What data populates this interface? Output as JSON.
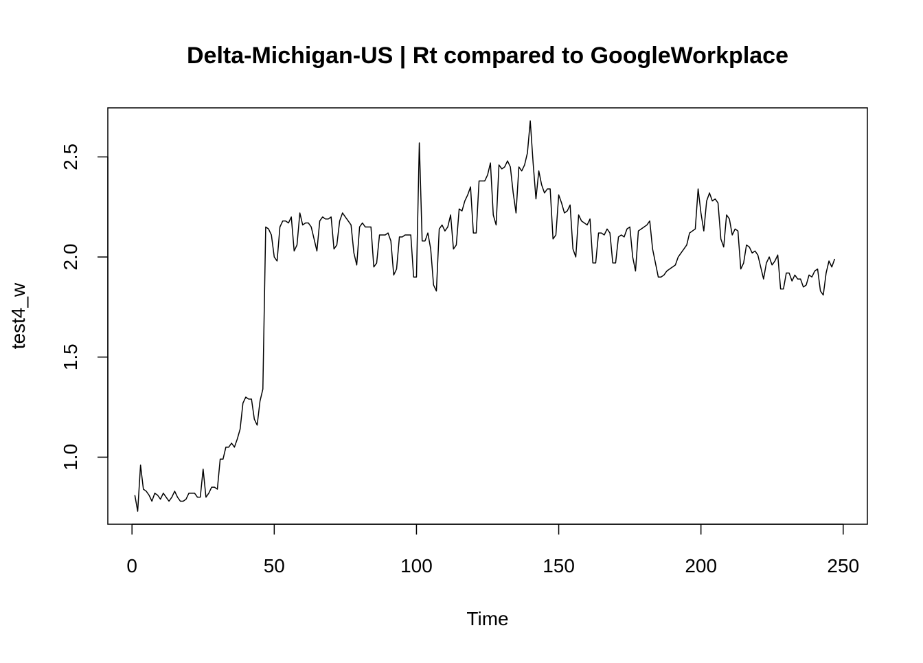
{
  "chart_data": {
    "type": "line",
    "title": "Delta-Michigan-US | Rt compared to GoogleWorkplace",
    "xlabel": "Time",
    "ylabel": "test4_w",
    "xlim": [
      -8.5,
      258.5
    ],
    "ylim": [
      0.665,
      2.745
    ],
    "x_ticks": [
      0,
      50,
      100,
      150,
      200,
      250
    ],
    "y_ticks": [
      1.0,
      1.5,
      2.0,
      2.5
    ],
    "x_tick_labels": [
      "0",
      "50",
      "100",
      "150",
      "200",
      "250"
    ],
    "y_tick_labels": [
      "1.0",
      "1.5",
      "2.0",
      "2.5"
    ],
    "grid": false,
    "series": [
      {
        "values": [
          [
            1,
            0.81
          ],
          [
            2,
            0.73
          ],
          [
            3,
            0.96
          ],
          [
            4,
            0.84
          ],
          [
            5,
            0.83
          ],
          [
            6,
            0.81
          ],
          [
            7,
            0.78
          ],
          [
            8,
            0.82
          ],
          [
            9,
            0.81
          ],
          [
            10,
            0.79
          ],
          [
            11,
            0.82
          ],
          [
            12,
            0.8
          ],
          [
            13,
            0.78
          ],
          [
            14,
            0.8
          ],
          [
            15,
            0.83
          ],
          [
            16,
            0.8
          ],
          [
            17,
            0.78
          ],
          [
            18,
            0.78
          ],
          [
            19,
            0.79
          ],
          [
            20,
            0.82
          ],
          [
            21,
            0.82
          ],
          [
            22,
            0.82
          ],
          [
            23,
            0.8
          ],
          [
            24,
            0.8
          ],
          [
            25,
            0.94
          ],
          [
            26,
            0.8
          ],
          [
            27,
            0.82
          ],
          [
            28,
            0.85
          ],
          [
            29,
            0.85
          ],
          [
            30,
            0.84
          ],
          [
            31,
            0.99
          ],
          [
            32,
            0.99
          ],
          [
            33,
            1.05
          ],
          [
            34,
            1.05
          ],
          [
            35,
            1.07
          ],
          [
            36,
            1.05
          ],
          [
            37,
            1.09
          ],
          [
            38,
            1.14
          ],
          [
            39,
            1.27
          ],
          [
            40,
            1.3
          ],
          [
            41,
            1.29
          ],
          [
            42,
            1.29
          ],
          [
            43,
            1.19
          ],
          [
            44,
            1.16
          ],
          [
            45,
            1.28
          ],
          [
            46,
            1.34
          ],
          [
            47,
            2.15
          ],
          [
            48,
            2.14
          ],
          [
            49,
            2.11
          ],
          [
            50,
            2.0
          ],
          [
            51,
            1.98
          ],
          [
            52,
            2.15
          ],
          [
            53,
            2.18
          ],
          [
            54,
            2.18
          ],
          [
            55,
            2.17
          ],
          [
            56,
            2.2
          ],
          [
            57,
            2.03
          ],
          [
            58,
            2.06
          ],
          [
            59,
            2.22
          ],
          [
            60,
            2.16
          ],
          [
            61,
            2.17
          ],
          [
            62,
            2.17
          ],
          [
            63,
            2.15
          ],
          [
            64,
            2.09
          ],
          [
            65,
            2.03
          ],
          [
            66,
            2.18
          ],
          [
            67,
            2.2
          ],
          [
            68,
            2.19
          ],
          [
            69,
            2.19
          ],
          [
            70,
            2.2
          ],
          [
            71,
            2.04
          ],
          [
            72,
            2.06
          ],
          [
            73,
            2.18
          ],
          [
            74,
            2.22
          ],
          [
            75,
            2.2
          ],
          [
            76,
            2.18
          ],
          [
            77,
            2.16
          ],
          [
            78,
            2.02
          ],
          [
            79,
            1.96
          ],
          [
            80,
            2.15
          ],
          [
            81,
            2.17
          ],
          [
            82,
            2.15
          ],
          [
            83,
            2.15
          ],
          [
            84,
            2.15
          ],
          [
            85,
            1.95
          ],
          [
            86,
            1.97
          ],
          [
            87,
            2.11
          ],
          [
            88,
            2.11
          ],
          [
            89,
            2.11
          ],
          [
            90,
            2.12
          ],
          [
            91,
            2.08
          ],
          [
            92,
            1.91
          ],
          [
            93,
            1.94
          ],
          [
            94,
            2.1
          ],
          [
            95,
            2.1
          ],
          [
            96,
            2.11
          ],
          [
            97,
            2.11
          ],
          [
            98,
            2.11
          ],
          [
            99,
            1.9
          ],
          [
            100,
            1.9
          ],
          [
            101,
            2.57
          ],
          [
            102,
            2.08
          ],
          [
            103,
            2.08
          ],
          [
            104,
            2.12
          ],
          [
            105,
            2.04
          ],
          [
            106,
            1.86
          ],
          [
            107,
            1.83
          ],
          [
            108,
            2.14
          ],
          [
            109,
            2.16
          ],
          [
            110,
            2.13
          ],
          [
            111,
            2.15
          ],
          [
            112,
            2.21
          ],
          [
            113,
            2.04
          ],
          [
            114,
            2.06
          ],
          [
            115,
            2.24
          ],
          [
            116,
            2.23
          ],
          [
            117,
            2.28
          ],
          [
            118,
            2.31
          ],
          [
            119,
            2.35
          ],
          [
            120,
            2.12
          ],
          [
            121,
            2.12
          ],
          [
            122,
            2.38
          ],
          [
            123,
            2.38
          ],
          [
            124,
            2.38
          ],
          [
            125,
            2.41
          ],
          [
            126,
            2.47
          ],
          [
            127,
            2.21
          ],
          [
            128,
            2.16
          ],
          [
            129,
            2.46
          ],
          [
            130,
            2.44
          ],
          [
            131,
            2.45
          ],
          [
            132,
            2.48
          ],
          [
            133,
            2.45
          ],
          [
            134,
            2.32
          ],
          [
            135,
            2.22
          ],
          [
            136,
            2.45
          ],
          [
            137,
            2.43
          ],
          [
            138,
            2.46
          ],
          [
            139,
            2.52
          ],
          [
            140,
            2.68
          ],
          [
            141,
            2.47
          ],
          [
            142,
            2.29
          ],
          [
            143,
            2.43
          ],
          [
            144,
            2.36
          ],
          [
            145,
            2.32
          ],
          [
            146,
            2.34
          ],
          [
            147,
            2.34
          ],
          [
            148,
            2.09
          ],
          [
            149,
            2.11
          ],
          [
            150,
            2.31
          ],
          [
            151,
            2.27
          ],
          [
            152,
            2.22
          ],
          [
            153,
            2.23
          ],
          [
            154,
            2.26
          ],
          [
            155,
            2.04
          ],
          [
            156,
            2.0
          ],
          [
            157,
            2.21
          ],
          [
            158,
            2.18
          ],
          [
            159,
            2.17
          ],
          [
            160,
            2.16
          ],
          [
            161,
            2.19
          ],
          [
            162,
            1.97
          ],
          [
            163,
            1.97
          ],
          [
            164,
            2.12
          ],
          [
            165,
            2.12
          ],
          [
            166,
            2.11
          ],
          [
            167,
            2.14
          ],
          [
            168,
            2.12
          ],
          [
            169,
            1.97
          ],
          [
            170,
            1.97
          ],
          [
            171,
            2.1
          ],
          [
            172,
            2.11
          ],
          [
            173,
            2.1
          ],
          [
            174,
            2.14
          ],
          [
            175,
            2.15
          ],
          [
            176,
            2.0
          ],
          [
            177,
            1.93
          ],
          [
            178,
            2.13
          ],
          [
            179,
            2.14
          ],
          [
            180,
            2.15
          ],
          [
            181,
            2.16
          ],
          [
            182,
            2.18
          ],
          [
            183,
            2.04
          ],
          [
            184,
            1.97
          ],
          [
            185,
            1.9
          ],
          [
            186,
            1.9
          ],
          [
            187,
            1.91
          ],
          [
            188,
            1.93
          ],
          [
            189,
            1.94
          ],
          [
            190,
            1.95
          ],
          [
            191,
            1.96
          ],
          [
            192,
            2.0
          ],
          [
            193,
            2.02
          ],
          [
            194,
            2.04
          ],
          [
            195,
            2.06
          ],
          [
            196,
            2.12
          ],
          [
            197,
            2.13
          ],
          [
            198,
            2.14
          ],
          [
            199,
            2.34
          ],
          [
            200,
            2.22
          ],
          [
            201,
            2.13
          ],
          [
            202,
            2.28
          ],
          [
            203,
            2.32
          ],
          [
            204,
            2.28
          ],
          [
            205,
            2.29
          ],
          [
            206,
            2.27
          ],
          [
            207,
            2.09
          ],
          [
            208,
            2.05
          ],
          [
            209,
            2.21
          ],
          [
            210,
            2.19
          ],
          [
            211,
            2.11
          ],
          [
            212,
            2.14
          ],
          [
            213,
            2.13
          ],
          [
            214,
            1.94
          ],
          [
            215,
            1.97
          ],
          [
            216,
            2.06
          ],
          [
            217,
            2.05
          ],
          [
            218,
            2.02
          ],
          [
            219,
            2.03
          ],
          [
            220,
            2.01
          ],
          [
            221,
            1.95
          ],
          [
            222,
            1.89
          ],
          [
            223,
            1.97
          ],
          [
            224,
            2.0
          ],
          [
            225,
            1.96
          ],
          [
            226,
            1.98
          ],
          [
            227,
            2.01
          ],
          [
            228,
            1.84
          ],
          [
            229,
            1.84
          ],
          [
            230,
            1.92
          ],
          [
            231,
            1.92
          ],
          [
            232,
            1.88
          ],
          [
            233,
            1.91
          ],
          [
            234,
            1.89
          ],
          [
            235,
            1.89
          ],
          [
            236,
            1.85
          ],
          [
            237,
            1.86
          ],
          [
            238,
            1.91
          ],
          [
            239,
            1.9
          ],
          [
            240,
            1.93
          ],
          [
            241,
            1.94
          ],
          [
            242,
            1.83
          ],
          [
            243,
            1.81
          ],
          [
            244,
            1.92
          ],
          [
            245,
            1.98
          ],
          [
            246,
            1.95
          ],
          [
            247,
            1.99
          ]
        ],
        "color": "#000000"
      }
    ]
  }
}
